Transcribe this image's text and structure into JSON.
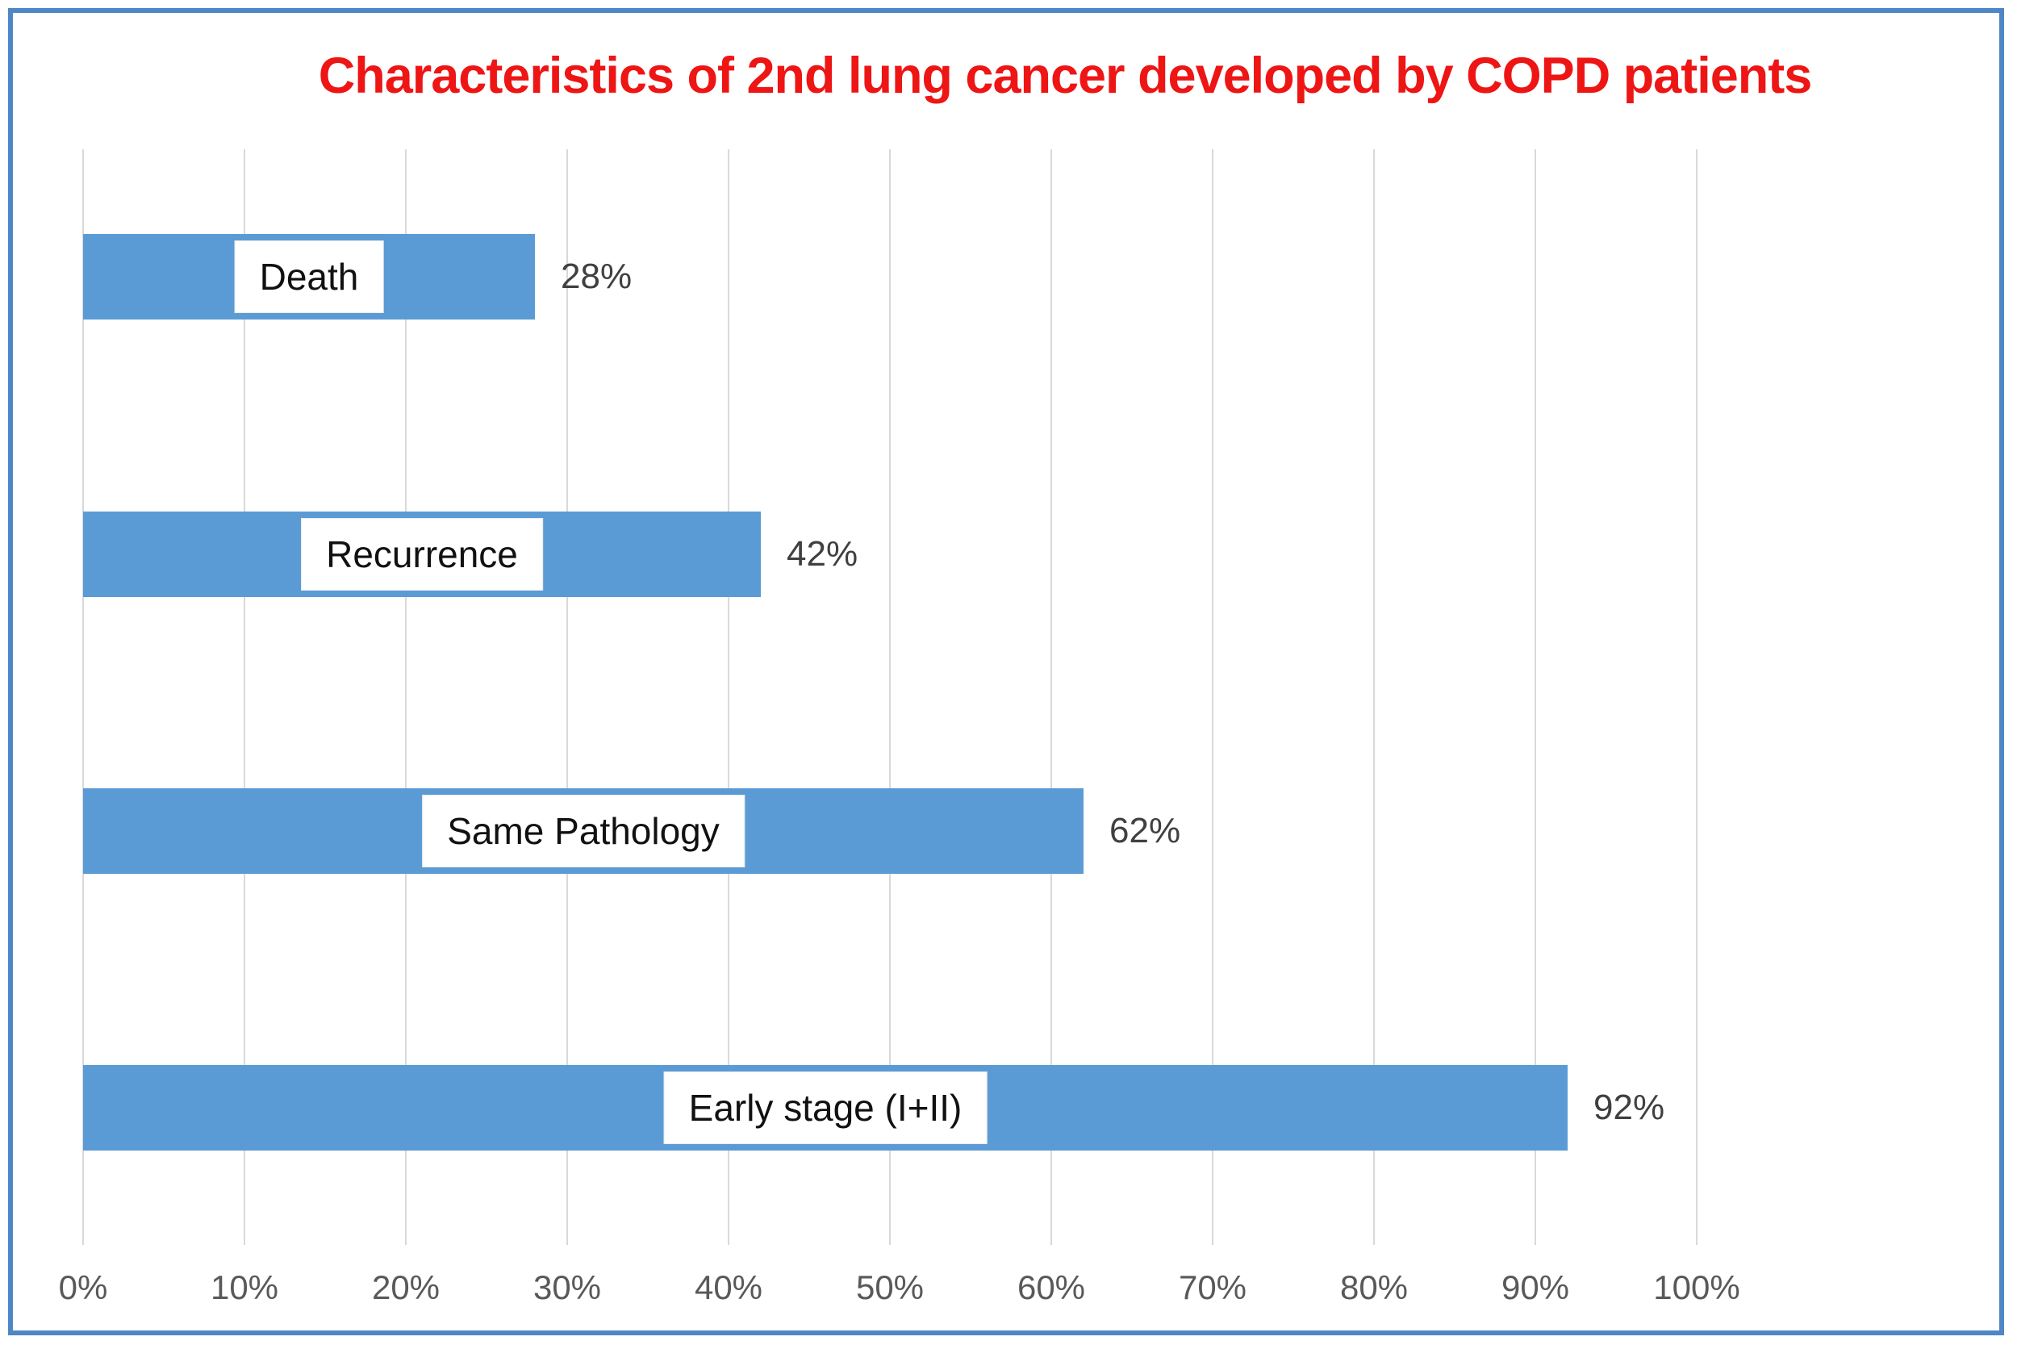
{
  "title": {
    "text": "Characteristics of 2nd lung cancer developed by COPD patients",
    "color": "#ee1515"
  },
  "colors": {
    "bar_fill": "#5b9bd5",
    "frame_border": "#4f86c6",
    "gridline": "#d9d9d9",
    "axis_text": "#595959",
    "value_text": "#404040",
    "bar_label_text": "#111111",
    "label_box_background": "#ffffff",
    "background": "#ffffff"
  },
  "chart_data": {
    "type": "bar",
    "orientation": "horizontal",
    "title": "Characteristics of 2nd lung cancer developed by COPD patients",
    "categories": [
      "Death",
      "Recurrence",
      "Same Pathology",
      "Early stage (I+II)"
    ],
    "values": [
      28,
      42,
      62,
      92
    ],
    "value_labels": [
      "28%",
      "42%",
      "62%",
      "92%"
    ],
    "category_label_style": "white box centered inside bar",
    "value_label_style": "outside right end of bar",
    "xlabel": "",
    "ylabel": "",
    "x_axis": {
      "min": 0,
      "max": 100,
      "tick_step": 10,
      "ticks": [
        "0%",
        "10%",
        "20%",
        "30%",
        "40%",
        "50%",
        "60%",
        "70%",
        "80%",
        "90%",
        "100%"
      ],
      "gridlines": true
    },
    "legend": null,
    "grid": "vertical light-gray lines, no axis line, no plot border"
  }
}
